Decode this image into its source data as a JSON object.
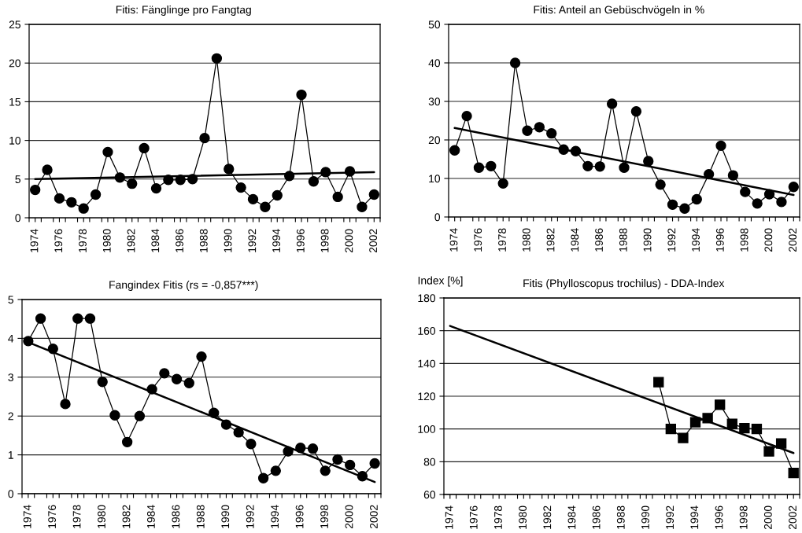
{
  "chart_data": [
    {
      "type": "line",
      "title": "Fitis: Fänglinge pro Fangtag",
      "x": [
        1974,
        1975,
        1976,
        1977,
        1978,
        1979,
        1980,
        1981,
        1982,
        1983,
        1984,
        1985,
        1986,
        1987,
        1988,
        1989,
        1990,
        1991,
        1992,
        1993,
        1994,
        1995,
        1996,
        1997,
        1998,
        1999,
        2000,
        2001,
        2002
      ],
      "series": [
        {
          "color": "#000000",
          "values": [
            3.6,
            6.2,
            2.5,
            2.0,
            1.2,
            3.0,
            8.5,
            5.2,
            4.4,
            9.0,
            3.8,
            4.9,
            4.9,
            5.0,
            10.3,
            20.6,
            6.3,
            3.9,
            2.4,
            1.4,
            2.9,
            5.4,
            15.9,
            4.7,
            5.9,
            2.7,
            6.0,
            1.4,
            3.0
          ]
        },
        {
          "type": "line",
          "color": "#000000",
          "marker": "none",
          "x": [
            1974,
            2002
          ],
          "values": [
            5.0,
            5.9
          ]
        }
      ],
      "xlim": [
        1973.5,
        2002.5
      ],
      "xticks": [
        {
          "value": 1973.5,
          "label": null
        },
        1974,
        {
          "value": 1974.5,
          "label": null
        },
        {
          "value": 1975.5,
          "label": null
        },
        1976,
        {
          "value": 1976.5,
          "label": null
        },
        {
          "value": 1977.5,
          "label": null
        },
        1978,
        {
          "value": 1978.5,
          "label": null
        },
        {
          "value": 1979.5,
          "label": null
        },
        1980,
        {
          "value": 1980.5,
          "label": null
        },
        {
          "value": 1981.5,
          "label": null
        },
        1982,
        {
          "value": 1982.5,
          "label": null
        },
        {
          "value": 1983.5,
          "label": null
        },
        1984,
        {
          "value": 1984.5,
          "label": null
        },
        {
          "value": 1985.5,
          "label": null
        },
        1986,
        {
          "value": 1986.5,
          "label": null
        },
        {
          "value": 1987.5,
          "label": null
        },
        1988,
        {
          "value": 1988.5,
          "label": null
        },
        {
          "value": 1989.5,
          "label": null
        },
        1990,
        {
          "value": 1990.5,
          "label": null
        },
        {
          "value": 1991.5,
          "label": null
        },
        1992,
        {
          "value": 1992.5,
          "label": null
        },
        {
          "value": 1993.5,
          "label": null
        },
        1994,
        {
          "value": 1994.5,
          "label": null
        },
        {
          "value": 1995.5,
          "label": null
        },
        1996,
        {
          "value": 1996.5,
          "label": null
        },
        {
          "value": 1997.5,
          "label": null
        },
        1998,
        {
          "value": 1998.5,
          "label": null
        },
        {
          "value": 1999.5,
          "label": null
        },
        2000,
        {
          "value": 2000.5,
          "label": null
        },
        {
          "value": 2001.5,
          "label": null
        },
        2002,
        {
          "value": 2002.5,
          "label": null
        }
      ],
      "ylim": [
        0,
        25
      ],
      "yticks": [
        0,
        5,
        10,
        15,
        20,
        25
      ],
      "grid": "y",
      "marker": "circle"
    },
    {
      "type": "line",
      "title": "Fitis: Anteil an Gebüschvögeln in %",
      "x": [
        1974,
        1975,
        1976,
        1977,
        1978,
        1979,
        1980,
        1981,
        1982,
        1983,
        1984,
        1985,
        1986,
        1987,
        1988,
        1989,
        1990,
        1991,
        1992,
        1993,
        1994,
        1995,
        1996,
        1997,
        1998,
        1999,
        2000,
        2001,
        2002
      ],
      "series": [
        {
          "color": "#000000",
          "values": [
            17.3,
            26.2,
            12.8,
            13.2,
            8.7,
            40.0,
            22.4,
            23.3,
            21.7,
            17.5,
            17.1,
            13.2,
            13.1,
            29.4,
            12.8,
            27.4,
            14.5,
            8.4,
            3.2,
            2.2,
            4.6,
            11.1,
            18.5,
            10.8,
            6.5,
            3.5,
            5.9,
            3.9,
            7.8
          ]
        },
        {
          "type": "line",
          "color": "#000000",
          "marker": "none",
          "x": [
            1974,
            2002
          ],
          "values": [
            23.1,
            5.7
          ]
        }
      ],
      "xlim": [
        1973.5,
        2002.5
      ],
      "xticks": [
        {
          "value": 1973.5,
          "label": null
        },
        1974,
        {
          "value": 1974.5,
          "label": null
        },
        {
          "value": 1975.5,
          "label": null
        },
        1976,
        {
          "value": 1976.5,
          "label": null
        },
        {
          "value": 1977.5,
          "label": null
        },
        1978,
        {
          "value": 1978.5,
          "label": null
        },
        {
          "value": 1979.5,
          "label": null
        },
        1980,
        {
          "value": 1980.5,
          "label": null
        },
        {
          "value": 1981.5,
          "label": null
        },
        1982,
        {
          "value": 1982.5,
          "label": null
        },
        {
          "value": 1983.5,
          "label": null
        },
        1984,
        {
          "value": 1984.5,
          "label": null
        },
        {
          "value": 1985.5,
          "label": null
        },
        1986,
        {
          "value": 1986.5,
          "label": null
        },
        {
          "value": 1987.5,
          "label": null
        },
        1988,
        {
          "value": 1988.5,
          "label": null
        },
        {
          "value": 1989.5,
          "label": null
        },
        1990,
        {
          "value": 1990.5,
          "label": null
        },
        {
          "value": 1991.5,
          "label": null
        },
        1992,
        {
          "value": 1992.5,
          "label": null
        },
        {
          "value": 1993.5,
          "label": null
        },
        1994,
        {
          "value": 1994.5,
          "label": null
        },
        {
          "value": 1995.5,
          "label": null
        },
        1996,
        {
          "value": 1996.5,
          "label": null
        },
        {
          "value": 1997.5,
          "label": null
        },
        1998,
        {
          "value": 1998.5,
          "label": null
        },
        {
          "value": 1999.5,
          "label": null
        },
        2000,
        {
          "value": 2000.5,
          "label": null
        },
        {
          "value": 2001.5,
          "label": null
        },
        2002,
        {
          "value": 2002.5,
          "label": null
        }
      ],
      "ylim": [
        0,
        50
      ],
      "yticks": [
        0,
        10,
        20,
        30,
        40,
        50
      ],
      "grid": "y",
      "marker": "circle"
    },
    {
      "type": "line",
      "title": "Fangindex Fitis (rs = -0,857***)",
      "x": [
        1974,
        1975,
        1976,
        1977,
        1978,
        1979,
        1980,
        1981,
        1982,
        1983,
        1984,
        1985,
        1986,
        1987,
        1988,
        1989,
        1990,
        1991,
        1992,
        1993,
        1994,
        1995,
        1996,
        1997,
        1998,
        1999,
        2000,
        2001,
        2002
      ],
      "series": [
        {
          "color": "#000000",
          "values": [
            3.93,
            4.51,
            3.73,
            2.31,
            4.51,
            4.51,
            2.88,
            2.02,
            1.33,
            2.0,
            2.69,
            3.1,
            2.95,
            2.85,
            3.53,
            2.08,
            1.78,
            1.58,
            1.28,
            0.4,
            0.59,
            1.09,
            1.18,
            1.16,
            0.59,
            0.88,
            0.74,
            0.45,
            0.78
          ]
        },
        {
          "type": "line",
          "color": "#000000",
          "marker": "none",
          "x": [
            1974,
            2002
          ],
          "values": [
            3.9,
            0.3
          ]
        }
      ],
      "xlim": [
        1973.5,
        2002.5
      ],
      "xticks": [
        {
          "value": 1973.5,
          "label": null
        },
        1974,
        {
          "value": 1974.5,
          "label": null
        },
        {
          "value": 1975.5,
          "label": null
        },
        1976,
        {
          "value": 1976.5,
          "label": null
        },
        {
          "value": 1977.5,
          "label": null
        },
        1978,
        {
          "value": 1978.5,
          "label": null
        },
        {
          "value": 1979.5,
          "label": null
        },
        1980,
        {
          "value": 1980.5,
          "label": null
        },
        {
          "value": 1981.5,
          "label": null
        },
        1982,
        {
          "value": 1982.5,
          "label": null
        },
        {
          "value": 1983.5,
          "label": null
        },
        1984,
        {
          "value": 1984.5,
          "label": null
        },
        {
          "value": 1985.5,
          "label": null
        },
        1986,
        {
          "value": 1986.5,
          "label": null
        },
        {
          "value": 1987.5,
          "label": null
        },
        1988,
        {
          "value": 1988.5,
          "label": null
        },
        {
          "value": 1989.5,
          "label": null
        },
        1990,
        {
          "value": 1990.5,
          "label": null
        },
        {
          "value": 1991.5,
          "label": null
        },
        1992,
        {
          "value": 1992.5,
          "label": null
        },
        {
          "value": 1993.5,
          "label": null
        },
        1994,
        {
          "value": 1994.5,
          "label": null
        },
        {
          "value": 1995.5,
          "label": null
        },
        1996,
        {
          "value": 1996.5,
          "label": null
        },
        {
          "value": 1997.5,
          "label": null
        },
        1998,
        {
          "value": 1998.5,
          "label": null
        },
        {
          "value": 1999.5,
          "label": null
        },
        2000,
        {
          "value": 2000.5,
          "label": null
        },
        {
          "value": 2001.5,
          "label": null
        },
        2002,
        {
          "value": 2002.5,
          "label": null
        }
      ],
      "ylim": [
        0,
        5
      ],
      "yticks": [
        0,
        1,
        2,
        3,
        4,
        5
      ],
      "grid": "y",
      "marker": "circle"
    },
    {
      "type": "line",
      "title": "Fitis (Phylloscopus trochilus) - DDA-Index",
      "ylabel": "Index [%]",
      "series": [
        {
          "color": "#000000",
          "x": [
            1991,
            1992,
            1993,
            1994,
            1995,
            1996,
            1997,
            1998,
            1999,
            2000,
            2001,
            2002
          ],
          "values": [
            128.6,
            100.0,
            94.5,
            104.1,
            106.6,
            114.8,
            103.1,
            100.5,
            100.0,
            86.3,
            91.1,
            73.1
          ]
        },
        {
          "type": "line",
          "color": "#000000",
          "marker": "none",
          "x": [
            1974,
            2002
          ],
          "values": [
            162.9,
            85.3
          ]
        }
      ],
      "xlim": [
        1973.5,
        2002.5
      ],
      "xticks": [
        {
          "value": 1973.5,
          "label": null
        },
        1974,
        {
          "value": 1974.5,
          "label": null
        },
        {
          "value": 1975.5,
          "label": null
        },
        1976,
        {
          "value": 1976.5,
          "label": null
        },
        {
          "value": 1977.5,
          "label": null
        },
        1978,
        {
          "value": 1978.5,
          "label": null
        },
        {
          "value": 1979.5,
          "label": null
        },
        1980,
        {
          "value": 1980.5,
          "label": null
        },
        {
          "value": 1981.5,
          "label": null
        },
        1982,
        {
          "value": 1982.5,
          "label": null
        },
        {
          "value": 1983.5,
          "label": null
        },
        1984,
        {
          "value": 1984.5,
          "label": null
        },
        {
          "value": 1985.5,
          "label": null
        },
        1986,
        {
          "value": 1986.5,
          "label": null
        },
        {
          "value": 1987.5,
          "label": null
        },
        1988,
        {
          "value": 1988.5,
          "label": null
        },
        {
          "value": 1989.5,
          "label": null
        },
        1990,
        {
          "value": 1990.5,
          "label": null
        },
        {
          "value": 1991.5,
          "label": null
        },
        1992,
        {
          "value": 1992.5,
          "label": null
        },
        {
          "value": 1993.5,
          "label": null
        },
        1994,
        {
          "value": 1994.5,
          "label": null
        },
        {
          "value": 1995.5,
          "label": null
        },
        1996,
        {
          "value": 1996.5,
          "label": null
        },
        {
          "value": 1997.5,
          "label": null
        },
        1998,
        {
          "value": 1998.5,
          "label": null
        },
        {
          "value": 1999.5,
          "label": null
        },
        2000,
        {
          "value": 2000.5,
          "label": null
        },
        {
          "value": 2001.5,
          "label": null
        },
        2002,
        {
          "value": 2002.5,
          "label": null
        }
      ],
      "ylim": [
        60,
        180
      ],
      "yticks": [
        60,
        80,
        100,
        120,
        140,
        160,
        180
      ],
      "grid": "y",
      "marker": "square"
    }
  ]
}
